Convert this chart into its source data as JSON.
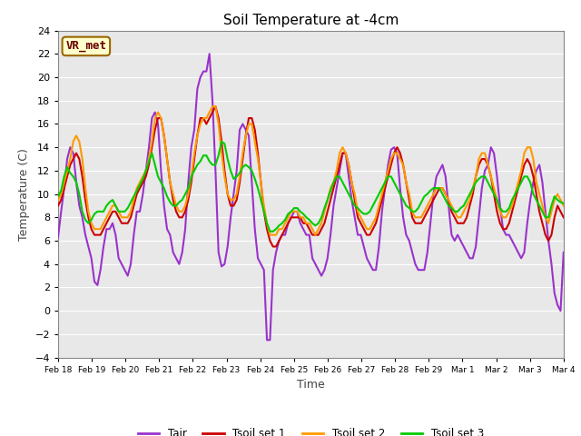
{
  "title": "Soil Temperature at -4cm",
  "xlabel": "Time",
  "ylabel": "Temperature (C)",
  "ylim": [
    -4,
    24
  ],
  "yticks": [
    -4,
    -2,
    0,
    2,
    4,
    6,
    8,
    10,
    12,
    14,
    16,
    18,
    20,
    22,
    24
  ],
  "x_labels": [
    "Feb 18",
    "Feb 19",
    "Feb 20",
    "Feb 21",
    "Feb 22",
    "Feb 23",
    "Feb 24",
    "Feb 25",
    "Feb 26",
    "Feb 27",
    "Feb 28",
    "Feb 29",
    "Mar 1",
    "Mar 2",
    "Mar 3",
    "Mar 4"
  ],
  "legend_labels": [
    "Tair",
    "Tsoil set 1",
    "Tsoil set 2",
    "Tsoil set 3"
  ],
  "legend_colors": [
    "#9933cc",
    "#cc0000",
    "#ff9900",
    "#00cc00"
  ],
  "watermark_text": "VR_met",
  "watermark_bg": "#ffffcc",
  "watermark_border": "#996600",
  "watermark_text_color": "#660000",
  "plot_bg_color": "#e8e8e8",
  "fig_bg_color": "#ffffff",
  "grid_color": "#ffffff",
  "line_width": 1.5,
  "Tair": [
    6.3,
    8.5,
    10.5,
    13.0,
    14.0,
    13.5,
    11.0,
    9.0,
    8.0,
    6.5,
    5.5,
    4.5,
    2.5,
    2.2,
    3.5,
    5.5,
    7.0,
    7.0,
    7.5,
    6.5,
    4.5,
    4.0,
    3.5,
    3.0,
    4.0,
    6.5,
    8.5,
    8.5,
    10.0,
    12.0,
    14.0,
    16.5,
    17.0,
    16.0,
    12.0,
    9.0,
    7.0,
    6.5,
    5.0,
    4.5,
    4.0,
    5.0,
    7.0,
    11.0,
    14.0,
    15.5,
    19.0,
    20.0,
    20.5,
    20.5,
    22.0,
    18.0,
    12.0,
    5.0,
    3.8,
    4.0,
    5.5,
    8.0,
    10.0,
    12.0,
    15.5,
    16.0,
    15.5,
    15.0,
    11.0,
    7.0,
    4.5,
    4.0,
    3.5,
    -2.5,
    -2.5,
    3.5,
    5.0,
    6.0,
    6.5,
    6.5,
    7.5,
    8.0,
    8.5,
    8.5,
    7.5,
    7.0,
    6.5,
    6.5,
    4.5,
    4.0,
    3.5,
    3.0,
    3.5,
    4.5,
    6.5,
    9.0,
    10.5,
    12.0,
    13.5,
    13.5,
    11.5,
    9.5,
    8.0,
    6.5,
    6.5,
    5.5,
    4.5,
    4.0,
    3.5,
    3.5,
    5.5,
    8.5,
    10.5,
    12.5,
    13.8,
    14.0,
    13.5,
    10.5,
    8.0,
    6.5,
    6.0,
    5.0,
    4.0,
    3.5,
    3.5,
    3.5,
    5.0,
    7.5,
    10.0,
    11.5,
    12.0,
    12.5,
    11.5,
    9.0,
    6.5,
    6.0,
    6.5,
    6.0,
    5.5,
    5.0,
    4.5,
    4.5,
    5.5,
    8.0,
    10.5,
    12.0,
    12.5,
    14.0,
    13.5,
    11.5,
    9.0,
    7.0,
    6.5,
    6.5,
    6.0,
    5.5,
    5.0,
    4.5,
    5.0,
    7.5,
    9.5,
    11.0,
    12.0,
    12.5,
    11.0,
    8.5,
    6.0,
    4.0,
    1.5,
    0.5,
    0.0,
    5.0
  ],
  "Tsoil1": [
    9.0,
    9.5,
    10.5,
    11.5,
    12.5,
    13.0,
    13.5,
    13.0,
    11.5,
    9.5,
    8.0,
    7.0,
    6.5,
    6.5,
    6.5,
    7.0,
    7.5,
    8.0,
    8.5,
    8.5,
    8.0,
    7.5,
    7.5,
    7.5,
    8.0,
    9.0,
    10.0,
    10.5,
    11.0,
    11.5,
    12.5,
    14.0,
    15.5,
    16.5,
    16.5,
    15.0,
    13.0,
    11.0,
    9.5,
    8.5,
    8.0,
    8.0,
    8.5,
    9.5,
    11.0,
    13.0,
    15.0,
    16.5,
    16.5,
    16.0,
    16.5,
    17.0,
    17.5,
    16.5,
    14.5,
    12.0,
    10.0,
    9.0,
    9.0,
    9.5,
    11.0,
    13.0,
    15.0,
    16.5,
    16.5,
    15.5,
    13.5,
    11.0,
    8.5,
    7.0,
    6.0,
    5.5,
    5.5,
    6.0,
    6.5,
    7.0,
    7.5,
    8.0,
    8.0,
    8.0,
    8.0,
    7.5,
    7.5,
    7.0,
    6.5,
    6.5,
    6.5,
    7.0,
    7.5,
    8.5,
    9.5,
    10.5,
    11.5,
    12.5,
    13.5,
    13.5,
    12.5,
    11.0,
    9.5,
    8.0,
    7.5,
    7.0,
    6.5,
    6.5,
    7.0,
    7.5,
    8.5,
    9.5,
    10.5,
    11.5,
    12.5,
    13.5,
    14.0,
    13.5,
    12.5,
    11.0,
    9.5,
    8.0,
    7.5,
    7.5,
    7.5,
    8.0,
    8.5,
    9.0,
    9.5,
    10.0,
    10.5,
    10.5,
    10.0,
    9.5,
    8.5,
    8.0,
    7.5,
    7.5,
    7.5,
    8.0,
    9.0,
    10.0,
    11.5,
    12.5,
    13.0,
    13.0,
    12.5,
    11.5,
    10.0,
    8.5,
    7.5,
    7.0,
    7.0,
    7.5,
    8.5,
    9.5,
    10.5,
    11.5,
    12.5,
    13.0,
    12.5,
    11.5,
    10.0,
    8.5,
    7.5,
    6.5,
    6.0,
    6.5,
    8.0,
    9.0,
    8.5,
    8.0
  ],
  "Tsoil2": [
    9.5,
    10.0,
    11.0,
    12.0,
    13.0,
    14.5,
    15.0,
    14.5,
    13.0,
    10.5,
    8.5,
    7.5,
    7.0,
    7.0,
    7.0,
    7.5,
    8.0,
    8.5,
    9.0,
    9.0,
    8.5,
    8.0,
    8.0,
    8.0,
    8.5,
    9.5,
    10.5,
    11.0,
    11.5,
    12.0,
    13.0,
    14.5,
    16.5,
    17.0,
    16.5,
    15.0,
    13.0,
    11.0,
    10.0,
    9.0,
    8.5,
    8.5,
    9.0,
    10.0,
    11.5,
    13.5,
    15.0,
    16.0,
    16.5,
    16.5,
    17.0,
    17.5,
    17.5,
    16.0,
    13.5,
    11.5,
    10.0,
    9.5,
    9.5,
    10.0,
    11.5,
    13.5,
    15.0,
    16.0,
    16.0,
    14.5,
    13.0,
    11.0,
    9.0,
    7.5,
    6.5,
    6.5,
    6.5,
    7.0,
    7.0,
    7.5,
    8.0,
    8.5,
    8.5,
    8.5,
    8.0,
    8.0,
    7.5,
    7.5,
    7.0,
    6.5,
    7.0,
    7.5,
    8.5,
    9.5,
    10.5,
    11.0,
    12.0,
    13.5,
    14.0,
    13.5,
    12.5,
    11.0,
    10.0,
    8.5,
    8.0,
    7.5,
    7.0,
    7.0,
    7.5,
    8.0,
    9.0,
    10.0,
    11.0,
    12.0,
    13.0,
    13.5,
    13.5,
    13.0,
    12.5,
    11.0,
    10.0,
    8.5,
    8.0,
    8.0,
    8.0,
    8.5,
    9.0,
    9.5,
    10.0,
    10.5,
    10.5,
    10.5,
    10.0,
    9.5,
    9.0,
    8.5,
    8.0,
    8.0,
    8.5,
    9.0,
    9.5,
    10.5,
    11.5,
    13.0,
    13.5,
    13.5,
    12.5,
    11.5,
    10.5,
    9.5,
    8.5,
    8.0,
    8.0,
    8.5,
    9.0,
    10.0,
    11.0,
    12.0,
    13.5,
    14.0,
    14.0,
    13.0,
    11.0,
    10.0,
    9.0,
    8.0,
    7.5,
    8.5,
    9.5,
    10.0,
    9.5,
    9.0
  ],
  "Tsoil3": [
    9.8,
    10.3,
    11.5,
    12.3,
    11.8,
    11.5,
    11.0,
    10.0,
    8.5,
    7.8,
    7.5,
    7.8,
    8.3,
    8.5,
    8.5,
    8.5,
    9.0,
    9.3,
    9.5,
    9.0,
    8.5,
    8.5,
    8.5,
    8.8,
    9.3,
    9.8,
    10.3,
    10.8,
    11.3,
    12.0,
    12.8,
    13.5,
    12.5,
    11.5,
    11.0,
    10.5,
    9.8,
    9.3,
    9.0,
    9.0,
    9.3,
    9.5,
    10.0,
    10.5,
    11.5,
    12.0,
    12.5,
    12.8,
    13.3,
    13.3,
    12.8,
    12.5,
    12.5,
    13.3,
    14.5,
    14.3,
    13.0,
    12.0,
    11.3,
    11.5,
    11.8,
    12.3,
    12.5,
    12.3,
    12.0,
    11.3,
    10.5,
    9.5,
    8.5,
    7.5,
    6.8,
    6.8,
    7.0,
    7.3,
    7.5,
    7.8,
    8.3,
    8.5,
    8.8,
    8.8,
    8.5,
    8.3,
    8.0,
    7.8,
    7.5,
    7.3,
    7.5,
    8.0,
    8.8,
    9.5,
    10.3,
    11.0,
    11.5,
    11.5,
    11.0,
    10.5,
    10.0,
    9.5,
    9.0,
    8.8,
    8.5,
    8.3,
    8.3,
    8.5,
    9.0,
    9.5,
    10.0,
    10.5,
    11.0,
    11.5,
    11.5,
    11.0,
    10.5,
    10.0,
    9.5,
    9.0,
    8.8,
    8.5,
    8.5,
    8.8,
    9.3,
    9.8,
    10.0,
    10.3,
    10.5,
    10.5,
    10.5,
    10.0,
    9.5,
    9.0,
    8.8,
    8.5,
    8.5,
    8.8,
    9.0,
    9.5,
    10.0,
    10.5,
    11.0,
    11.3,
    11.5,
    11.5,
    11.0,
    10.5,
    10.0,
    9.5,
    8.8,
    8.5,
    8.5,
    8.8,
    9.5,
    10.0,
    10.5,
    11.0,
    11.5,
    11.5,
    11.0,
    10.0,
    9.5,
    9.0,
    8.5,
    8.0,
    8.0,
    9.0,
    9.8,
    9.5,
    9.3,
    9.2
  ]
}
